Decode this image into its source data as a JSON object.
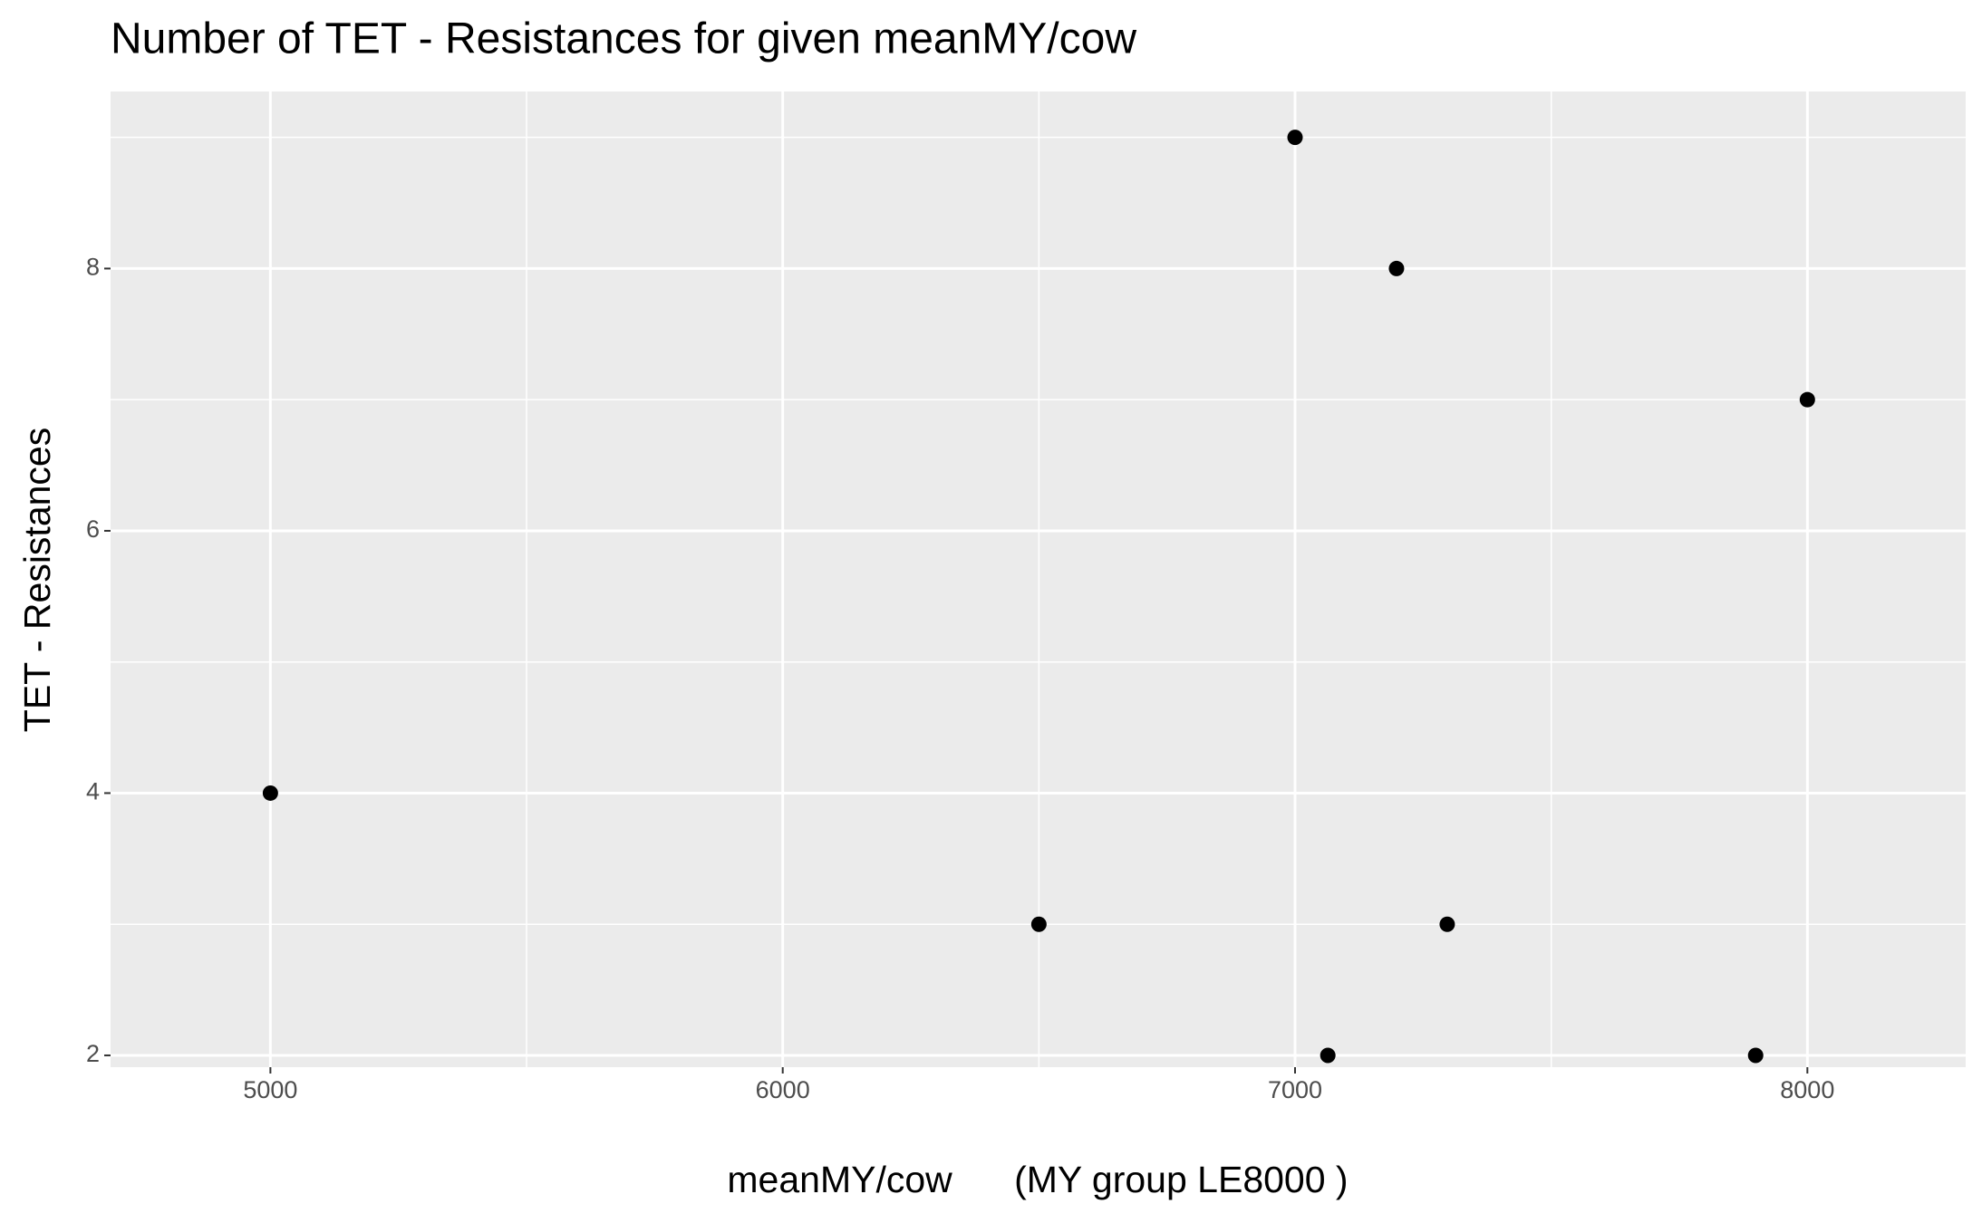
{
  "chart_data": {
    "type": "scatter",
    "title": "Number of TET - Resistances for given meanMY/cow",
    "x_label": "meanMY/cow      (MY group LE8000 )",
    "y_label": "TET - Resistances",
    "x": [
      5000,
      6500,
      7000,
      7064,
      7198,
      7297,
      7899,
      8000
    ],
    "values": [
      4,
      3,
      9,
      2,
      8,
      3,
      2,
      7
    ],
    "color": "#000000",
    "xlim": [
      4688,
      8309
    ],
    "xticks": [
      5000,
      6000,
      7000,
      8000
    ],
    "x_minor_breaks": [
      5500,
      6500,
      7500
    ],
    "ylim": [
      1.91,
      9.35
    ],
    "yticks": [
      2,
      4,
      6,
      8
    ],
    "y_minor_breaks": [
      3,
      5,
      7,
      9
    ],
    "grid": true
  }
}
